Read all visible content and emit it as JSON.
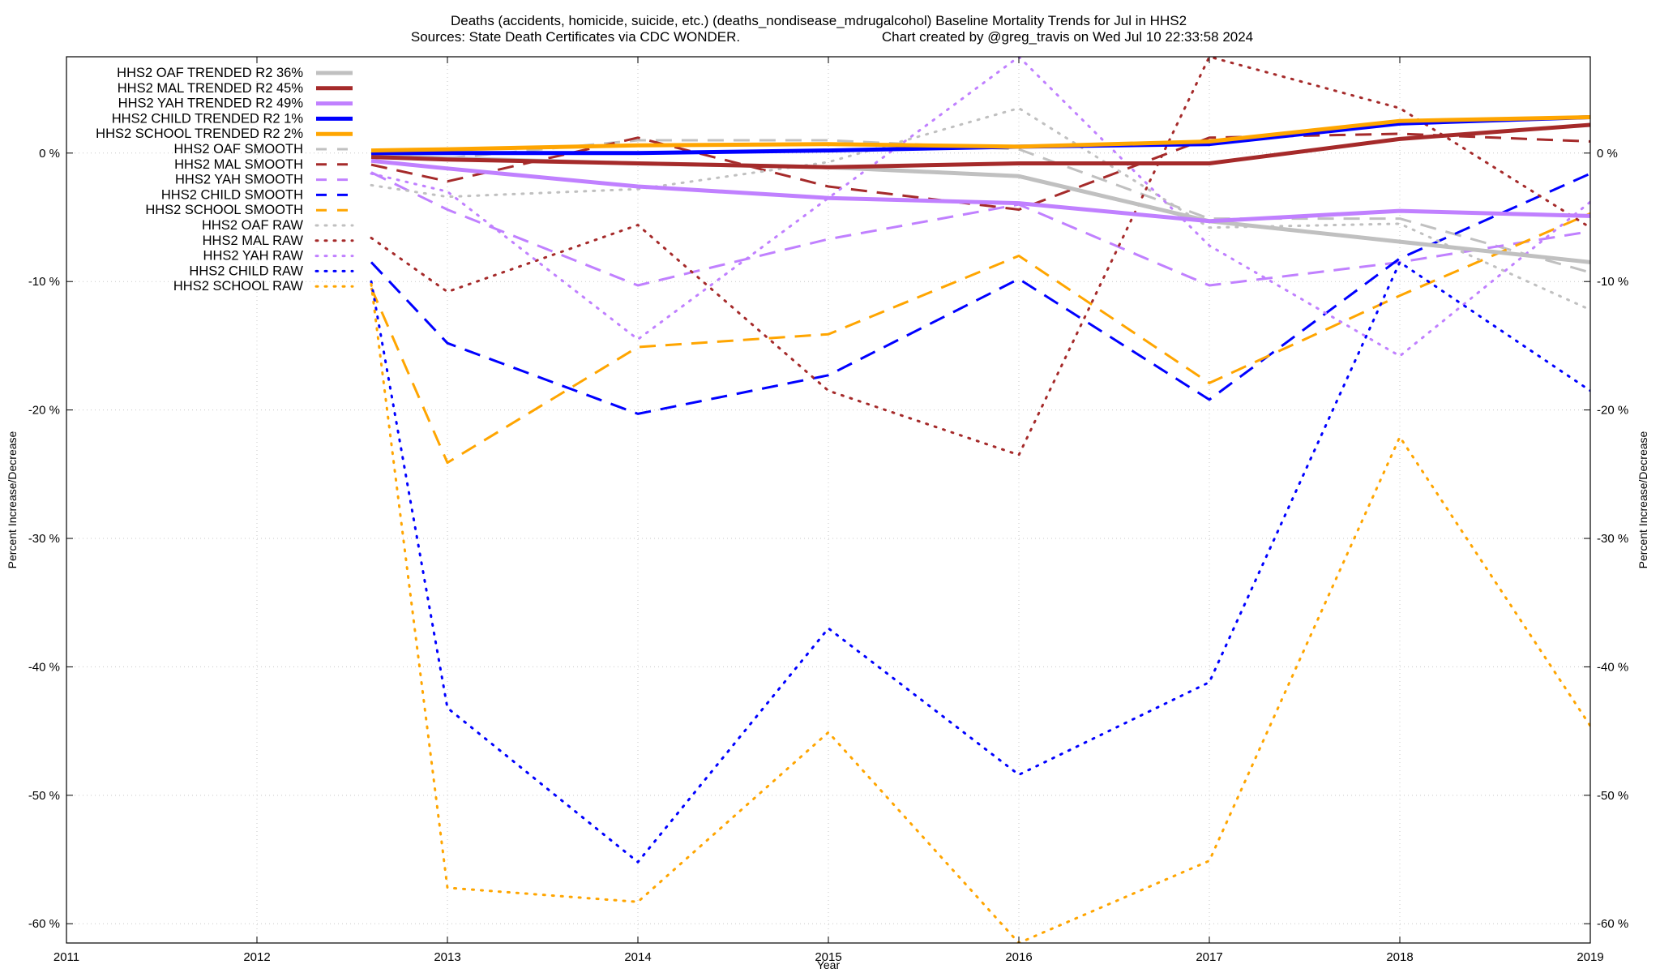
{
  "chart_data": {
    "type": "line",
    "title_line1": "Deaths (accidents, homicide, suicide, etc.) (deaths_nondisease_mdrugalcohol)  Baseline Mortality Trends for Jul in HHS2",
    "title_line2_left": "Sources: State Death Certificates via CDC WONDER.",
    "title_line2_right": "Chart created by @greg_travis on Wed Jul 10 22:33:58 2024",
    "xlabel": "Year",
    "ylabel": "Percent Increase/Decrease",
    "xlim": [
      2011,
      2019
    ],
    "ylim": [
      -61.5,
      7.5
    ],
    "x_ticks": [
      2011,
      2012,
      2013,
      2014,
      2015,
      2016,
      2017,
      2018,
      2019
    ],
    "y_ticks": [
      0,
      -10,
      -20,
      -30,
      -40,
      -50,
      -60
    ],
    "y_tick_labels": [
      "0 %",
      "-10 %",
      "-20 %",
      "-30 %",
      "-40 %",
      "-50 %",
      "-60 %"
    ],
    "grid": true,
    "legend_position": "top-left",
    "series": [
      {
        "name": "HHS2 OAF TRENDED R2  36%",
        "style": "solid",
        "width": 5,
        "color": "#c0c0c0",
        "x": [
          2012.6,
          2013,
          2014,
          2015,
          2016,
          2017,
          2018,
          2019
        ],
        "y": [
          -0.2,
          -0.4,
          -0.8,
          -1.1,
          -1.8,
          -5.3,
          -6.9,
          -8.5
        ]
      },
      {
        "name": "HHS2 MAL TRENDED R2  45%",
        "style": "solid",
        "width": 5,
        "color": "#a52a2a",
        "x": [
          2012.6,
          2013,
          2014,
          2015,
          2016,
          2017,
          2018,
          2019
        ],
        "y": [
          -0.3,
          -0.5,
          -0.8,
          -1.1,
          -0.8,
          -0.8,
          1.1,
          2.2
        ]
      },
      {
        "name": "HHS2 YAH TRENDED R2  49%",
        "style": "solid",
        "width": 5,
        "color": "#c080ff",
        "x": [
          2012.6,
          2013,
          2014,
          2015,
          2016,
          2017,
          2018,
          2019
        ],
        "y": [
          -0.6,
          -1.2,
          -2.6,
          -3.5,
          -3.9,
          -5.3,
          -4.5,
          -4.9
        ]
      },
      {
        "name": "HHS2 CHILD TRENDED R2   1%",
        "style": "solid",
        "width": 5,
        "color": "#0000ff",
        "x": [
          2012.6,
          2013,
          2014,
          2015,
          2016,
          2017,
          2018,
          2019
        ],
        "y": [
          0.0,
          0.0,
          0.0,
          0.2,
          0.5,
          0.7,
          2.3,
          2.8
        ]
      },
      {
        "name": "HHS2 SCHOOL TRENDED R2   2%",
        "style": "solid",
        "width": 5,
        "color": "#ffa500",
        "x": [
          2012.6,
          2013,
          2014,
          2015,
          2016,
          2017,
          2018,
          2019
        ],
        "y": [
          0.2,
          0.3,
          0.6,
          0.7,
          0.5,
          0.9,
          2.5,
          2.8
        ]
      },
      {
        "name": "HHS2 OAF SMOOTH",
        "style": "dashed",
        "width": 3,
        "color": "#c0c0c0",
        "x": [
          2012.6,
          2013,
          2014,
          2015,
          2016,
          2017,
          2018,
          2019
        ],
        "y": [
          -0.2,
          -0.4,
          1.0,
          1.0,
          0.3,
          -5.1,
          -5.1,
          -9.3
        ]
      },
      {
        "name": "HHS2 MAL SMOOTH",
        "style": "dashed",
        "width": 3,
        "color": "#a52a2a",
        "x": [
          2012.6,
          2013,
          2014,
          2015,
          2016,
          2017,
          2018,
          2019
        ],
        "y": [
          -0.9,
          -2.2,
          1.2,
          -2.6,
          -4.4,
          1.2,
          1.5,
          0.9
        ]
      },
      {
        "name": "HHS2 YAH SMOOTH",
        "style": "dashed",
        "width": 3,
        "color": "#c080ff",
        "x": [
          2012.6,
          2013,
          2014,
          2015,
          2016,
          2017,
          2018,
          2019
        ],
        "y": [
          -1.5,
          -4.4,
          -10.3,
          -6.7,
          -4.0,
          -10.3,
          -8.5,
          -6.1
        ]
      },
      {
        "name": "HHS2 CHILD SMOOTH",
        "style": "dashed",
        "width": 3,
        "color": "#0000ff",
        "x": [
          2012.6,
          2013,
          2014,
          2015,
          2016,
          2017,
          2018,
          2019
        ],
        "y": [
          -8.5,
          -14.8,
          -20.3,
          -17.3,
          -9.8,
          -19.2,
          -8.2,
          -1.6
        ]
      },
      {
        "name": "HHS2 SCHOOL SMOOTH",
        "style": "dashed",
        "width": 3,
        "color": "#ffa500",
        "x": [
          2012.6,
          2013,
          2014,
          2015,
          2016,
          2017,
          2018,
          2019
        ],
        "y": [
          -10.5,
          -24.1,
          -15.1,
          -14.1,
          -8.0,
          -17.9,
          -11.1,
          -4.7
        ]
      },
      {
        "name": "HHS2 OAF RAW",
        "style": "dotted",
        "width": 3,
        "color": "#c0c0c0",
        "x": [
          2012.6,
          2013,
          2014,
          2015,
          2016,
          2017,
          2018,
          2019
        ],
        "y": [
          -2.5,
          -3.4,
          -2.8,
          -0.7,
          3.5,
          -5.8,
          -5.5,
          -12.2
        ]
      },
      {
        "name": "HHS2 MAL RAW",
        "style": "dotted",
        "width": 3,
        "color": "#a52a2a",
        "x": [
          2012.6,
          2013,
          2014,
          2015,
          2016,
          2017,
          2018,
          2019
        ],
        "y": [
          -6.6,
          -10.8,
          -5.6,
          -18.5,
          -23.5,
          7.5,
          3.5,
          -5.8
        ]
      },
      {
        "name": "HHS2 YAH RAW",
        "style": "dotted",
        "width": 3,
        "color": "#c080ff",
        "x": [
          2012.6,
          2013,
          2014,
          2015,
          2016,
          2017,
          2018,
          2019
        ],
        "y": [
          -1.6,
          -3.0,
          -14.5,
          -3.5,
          7.5,
          -7.2,
          -15.8,
          -3.8
        ]
      },
      {
        "name": "HHS2 CHILD RAW",
        "style": "dotted",
        "width": 3,
        "color": "#0000ff",
        "x": [
          2012.6,
          2013,
          2014,
          2015,
          2016,
          2017,
          2018,
          2019
        ],
        "y": [
          -10.0,
          -43.2,
          -55.2,
          -37.0,
          -48.4,
          -41.2,
          -8.5,
          -18.5
        ]
      },
      {
        "name": "HHS2 SCHOOL RAW",
        "style": "dotted",
        "width": 3,
        "color": "#ffa500",
        "x": [
          2012.6,
          2013,
          2014,
          2015,
          2016,
          2017,
          2018,
          2019
        ],
        "y": [
          -10.2,
          -57.2,
          -58.3,
          -45.1,
          -61.5,
          -55.1,
          -22.1,
          -44.6
        ]
      }
    ]
  }
}
